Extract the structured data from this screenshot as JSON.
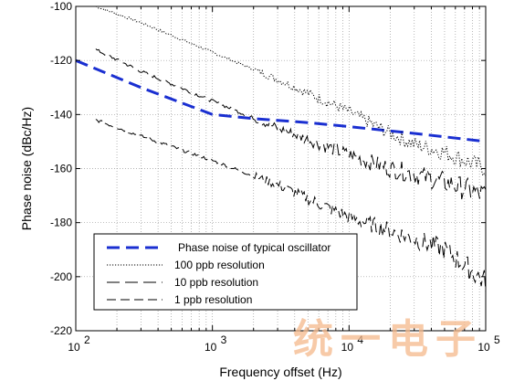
{
  "chart_data": {
    "type": "line",
    "title": "",
    "xlabel": "Frequency offset (Hz)",
    "ylabel": "Phase noise (dBc/Hz)",
    "xscale": "log",
    "xlim": [
      100,
      100000
    ],
    "ylim": [
      -220,
      -100
    ],
    "grid": true,
    "x_ticks": [
      {
        "value": 100,
        "base": "10",
        "exp": "2"
      },
      {
        "value": 1000,
        "base": "10",
        "exp": "3"
      },
      {
        "value": 10000,
        "base": "10",
        "exp": "4"
      },
      {
        "value": 100000,
        "base": "10",
        "exp": "5"
      }
    ],
    "y_ticks": [
      -220,
      -200,
      -180,
      -160,
      -140,
      -120,
      -100
    ],
    "legend_position": "bottom-left",
    "series": [
      {
        "name": "Phase noise of typical oscillator",
        "style": "thick-dashed",
        "color": "#1a2fd1",
        "x": [
          100,
          300,
          1000,
          2000,
          5000,
          10000,
          30000,
          100000
        ],
        "y": [
          -120,
          -130,
          -140,
          -141.5,
          -143,
          -144.5,
          -147,
          -150
        ]
      },
      {
        "name": "100 ppb resolution",
        "style": "dotted",
        "color": "#000000",
        "x": [
          140,
          300,
          1000,
          3000,
          10000,
          20000,
          30000,
          50000,
          100000
        ],
        "y": [
          -100,
          -106,
          -117,
          -127,
          -139,
          -147,
          -151,
          -154,
          -160
        ],
        "noise": 1.2
      },
      {
        "name": "10 ppb resolution",
        "style": "long-dashed",
        "color": "#000000",
        "x": [
          140,
          300,
          1000,
          3000,
          10000,
          20000,
          30000,
          50000,
          100000
        ],
        "y": [
          -116,
          -124,
          -135,
          -145,
          -155,
          -160,
          -162,
          -165,
          -170
        ],
        "noise": 1.5
      },
      {
        "name": "1 ppb resolution",
        "style": "dash",
        "color": "#000000",
        "x": [
          140,
          300,
          1000,
          3000,
          10000,
          20000,
          30000,
          50000,
          100000
        ],
        "y": [
          -142,
          -148,
          -157,
          -166,
          -178,
          -183,
          -186,
          -190,
          -202
        ],
        "noise": 1.5
      }
    ]
  },
  "watermark": {
    "text": "统一电子",
    "color": "#f5b98c"
  }
}
